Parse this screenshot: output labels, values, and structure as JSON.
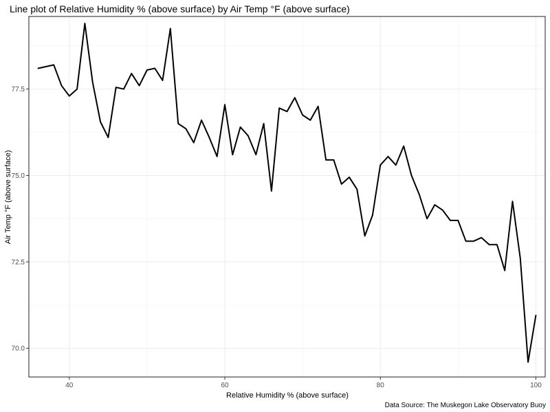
{
  "chart_data": {
    "type": "line",
    "title": "Line plot of Relative Humidity % (above surface) by Air Temp °F (above surface)",
    "xlabel": "Relative Humidity % (above surface)",
    "ylabel": "Air Temp °F (above surface)",
    "caption": "Data Source: The Muskegon Lake Observatory Buoy",
    "xlim": [
      34.8,
      101.2
    ],
    "ylim": [
      69.17,
      79.6
    ],
    "xticks": [
      40,
      60,
      80,
      100
    ],
    "yticks": [
      70.0,
      72.5,
      75.0,
      77.5
    ],
    "ytick_labels": [
      "70.0",
      "72.5",
      "75.0",
      "77.5"
    ],
    "grid": true,
    "line_color": "#000000",
    "series": [
      {
        "x": [
          36,
          37,
          38,
          39,
          40,
          41,
          42,
          43,
          44,
          45,
          46,
          47,
          48,
          49,
          50,
          51,
          52,
          53,
          54,
          55,
          56,
          57,
          58,
          59,
          60,
          61,
          62,
          63,
          64,
          65,
          66,
          67,
          68,
          69,
          70,
          71,
          72,
          73,
          74,
          75,
          76,
          77,
          78,
          79,
          80,
          81,
          82,
          83,
          84,
          85,
          86,
          87,
          88,
          89,
          90,
          91,
          92,
          93,
          94,
          95,
          96,
          97,
          98,
          99,
          100
        ],
        "y": [
          78.1,
          78.15,
          78.2,
          77.6,
          77.3,
          77.5,
          79.4,
          77.7,
          76.55,
          76.1,
          77.55,
          77.5,
          77.95,
          77.6,
          78.05,
          78.1,
          77.75,
          79.25,
          76.5,
          76.35,
          75.95,
          76.6,
          76.1,
          75.55,
          77.05,
          75.6,
          76.4,
          76.15,
          75.6,
          76.5,
          74.55,
          76.95,
          76.85,
          77.25,
          76.75,
          76.6,
          77.0,
          75.45,
          75.45,
          74.75,
          74.95,
          74.6,
          73.25,
          73.85,
          75.3,
          75.55,
          75.3,
          75.85,
          75.0,
          74.45,
          73.75,
          74.15,
          74.0,
          73.7,
          73.7,
          73.1,
          73.1,
          73.2,
          73.0,
          73.0,
          72.25,
          74.25,
          72.6,
          69.6,
          70.95
        ]
      }
    ]
  }
}
